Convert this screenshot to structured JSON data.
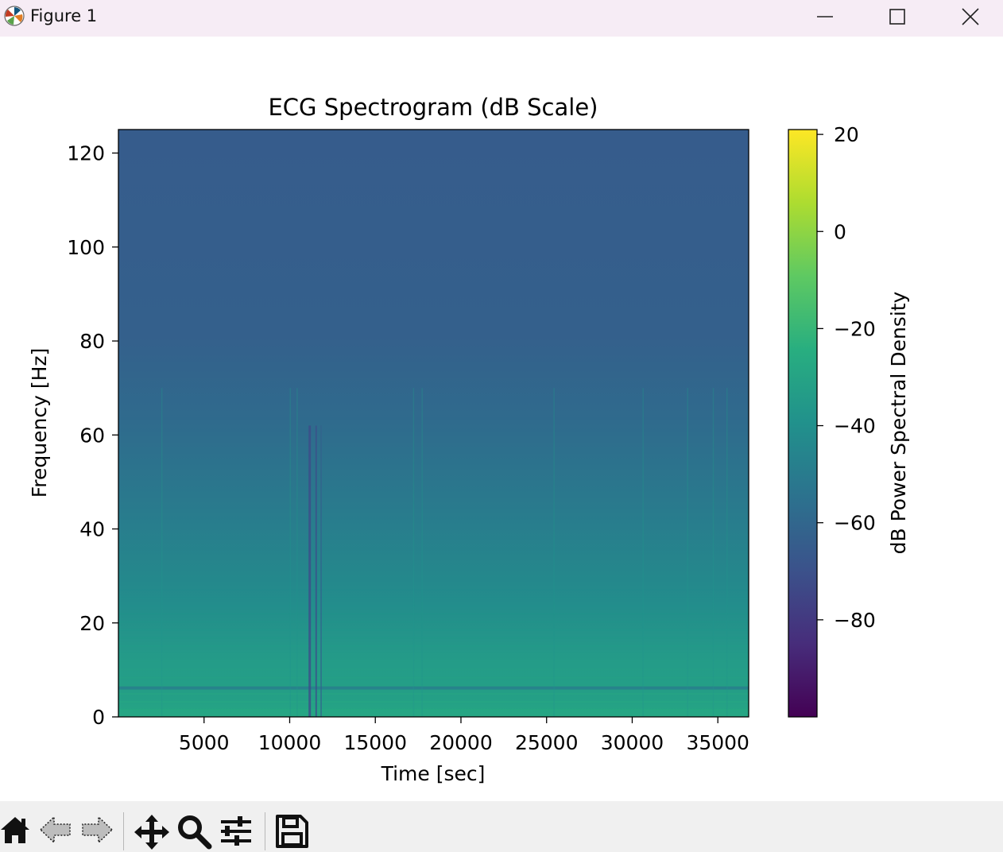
{
  "window": {
    "title": "Figure 1"
  },
  "toolbar": {
    "buttons": [
      {
        "name": "home",
        "icon": "home-icon"
      },
      {
        "name": "back",
        "icon": "back-arrow-icon"
      },
      {
        "name": "forward",
        "icon": "forward-arrow-icon"
      },
      {
        "name": "pan",
        "icon": "move-icon"
      },
      {
        "name": "zoom",
        "icon": "magnifier-icon"
      },
      {
        "name": "configure",
        "icon": "sliders-icon"
      },
      {
        "name": "save",
        "icon": "floppy-disk-icon"
      }
    ]
  },
  "chart_data": {
    "type": "heatmap",
    "title": "ECG Spectrogram (dB Scale)",
    "xlabel": "Time [sec]",
    "ylabel": "Frequency [Hz]",
    "xlim": [
      0,
      36800
    ],
    "ylim": [
      0,
      125
    ],
    "xticks": [
      5000,
      10000,
      15000,
      20000,
      25000,
      30000,
      35000
    ],
    "xtick_labels": [
      "5000",
      "10000",
      "15000",
      "20000",
      "25000",
      "30000",
      "35000"
    ],
    "yticks": [
      0,
      20,
      40,
      60,
      80,
      100,
      120
    ],
    "ytick_labels": [
      "0",
      "20",
      "40",
      "60",
      "80",
      "100",
      "120"
    ],
    "colormap": "viridis",
    "colorbar": {
      "label": "dB Power Spectral Density",
      "range": [
        -100,
        21
      ],
      "ticks": [
        20,
        0,
        -20,
        -40,
        -60,
        -80
      ],
      "tick_labels": [
        "20",
        "0",
        "−20",
        "−40",
        "−60",
        "−80"
      ]
    },
    "description_values": {
      "high_freq_level_db": -65,
      "mid_freq_level_db": -50,
      "low_freq_level_db": -30
    }
  }
}
